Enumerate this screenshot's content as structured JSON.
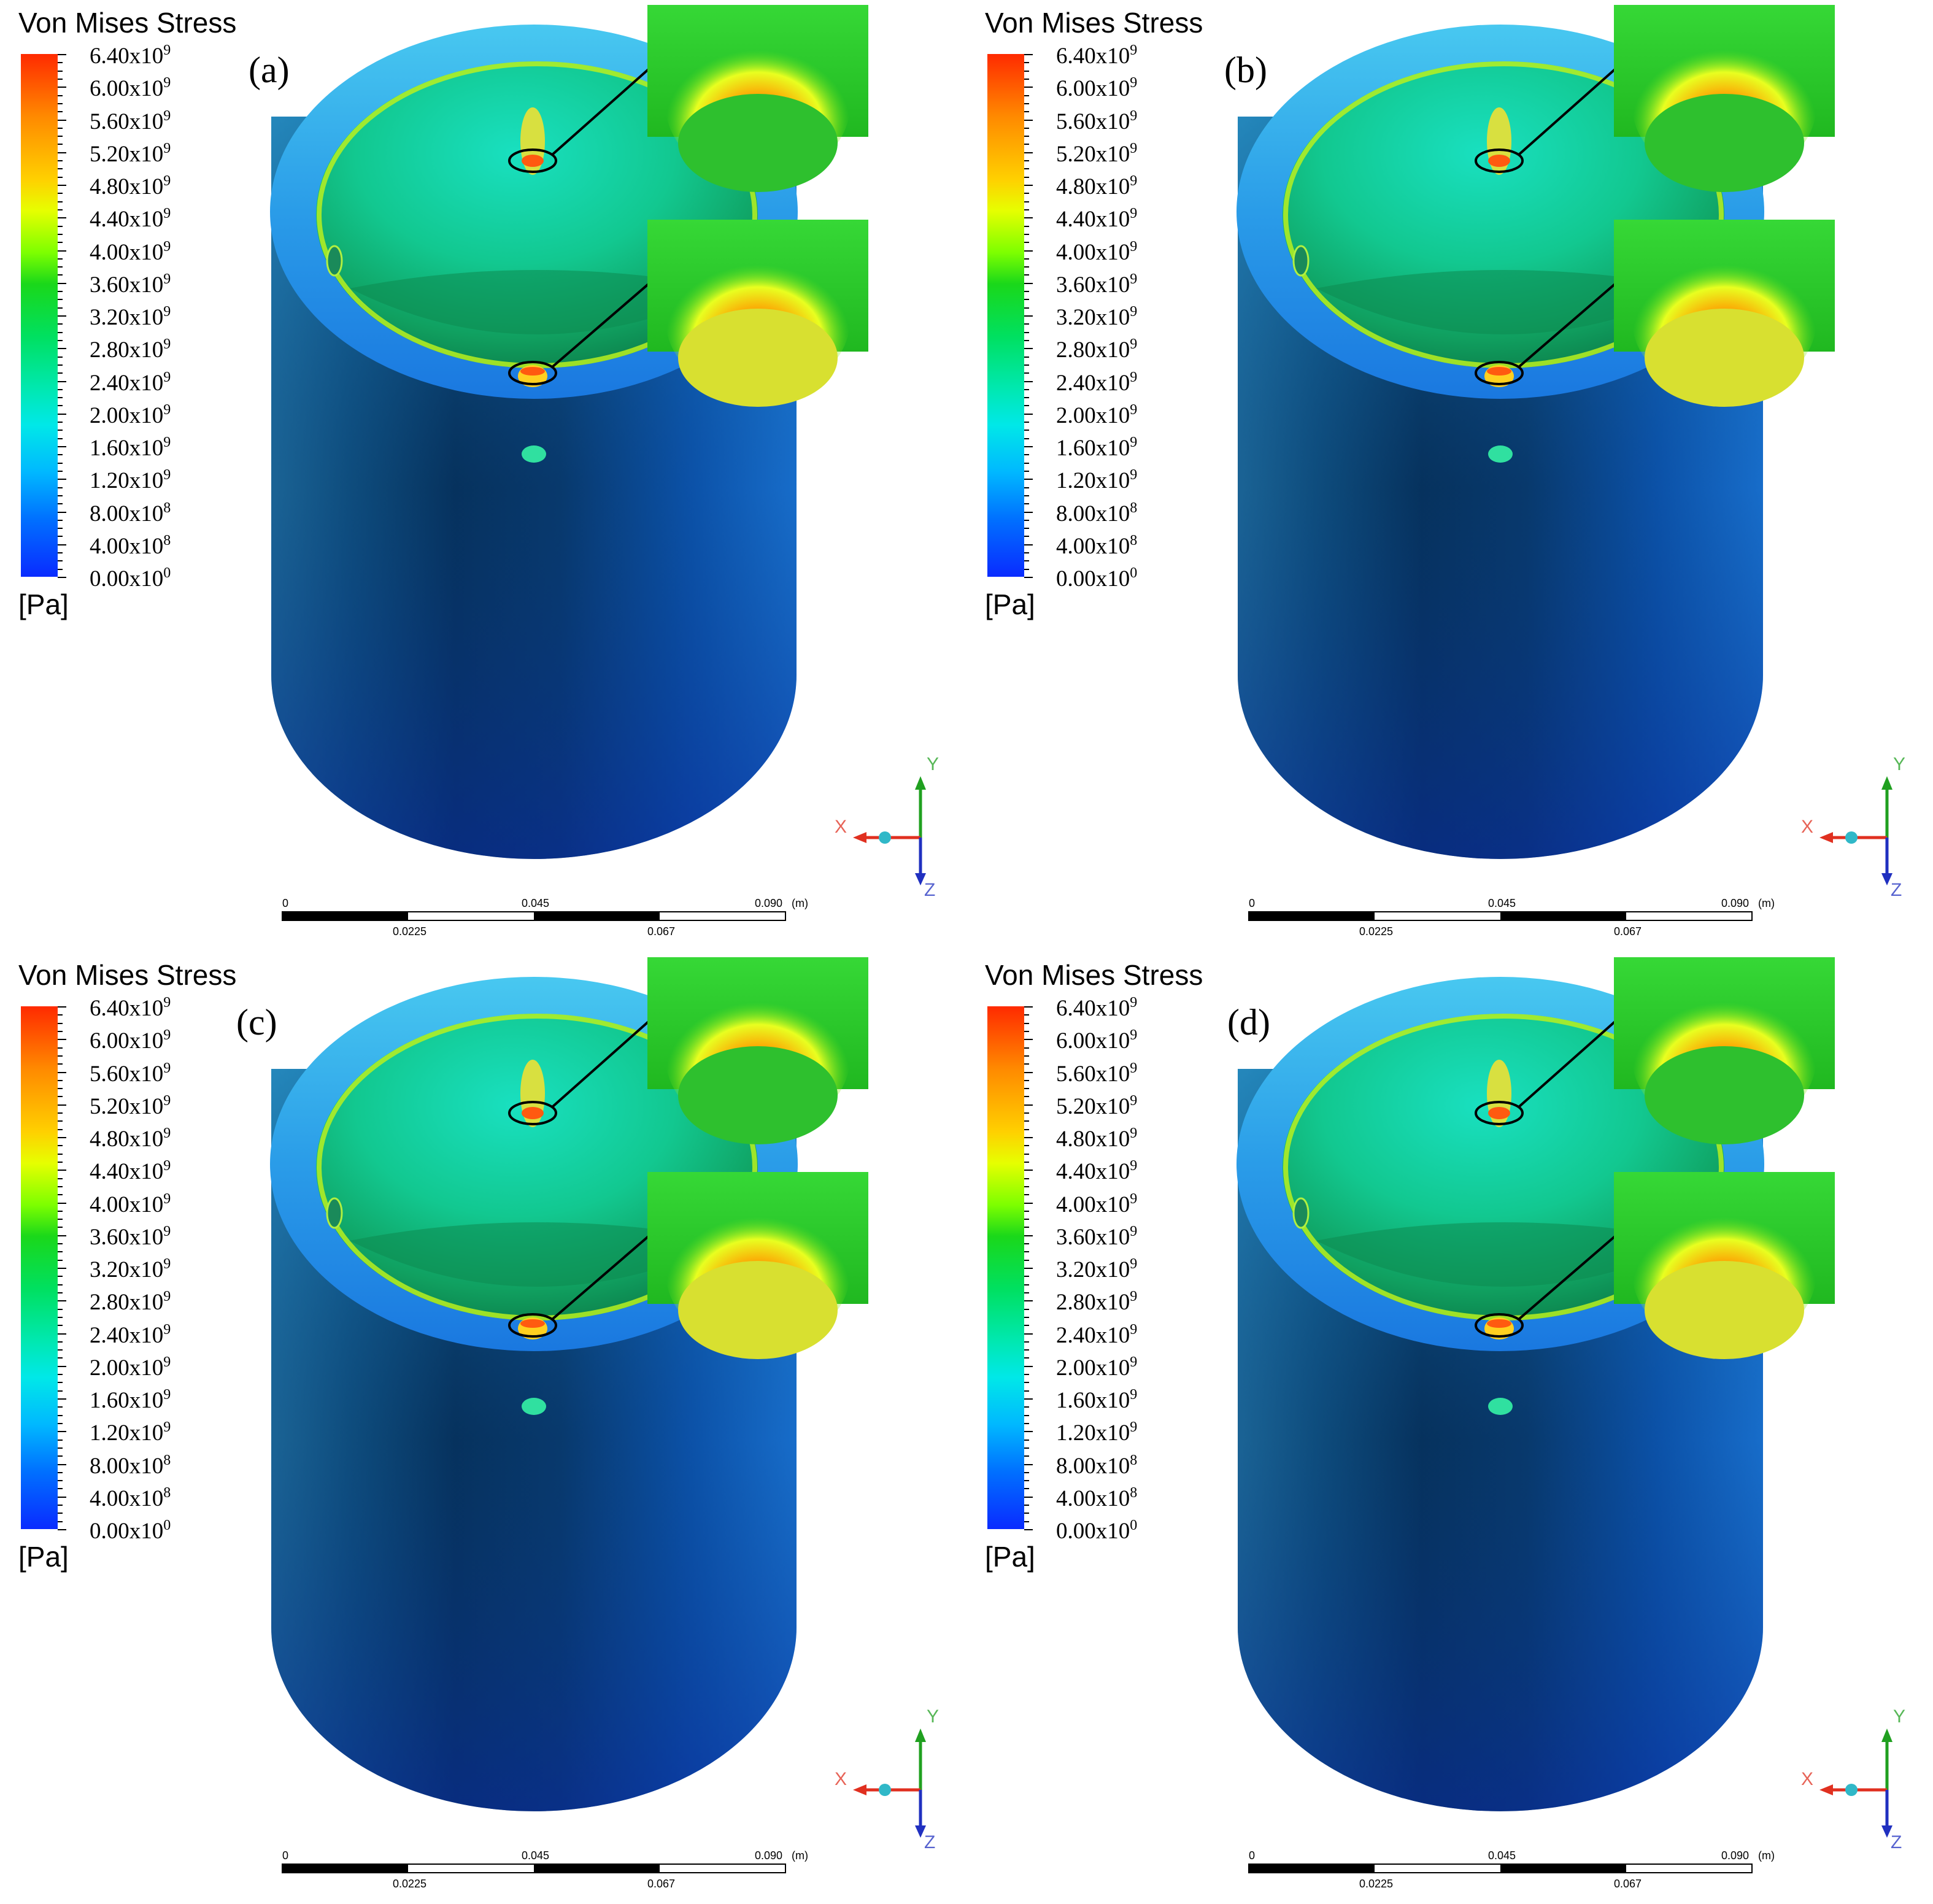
{
  "legend": {
    "title": "Von Mises Stress",
    "unit": "[Pa]",
    "ticks": [
      {
        "mantissa": "6.40x10",
        "exp": "9"
      },
      {
        "mantissa": "6.00x10",
        "exp": "9"
      },
      {
        "mantissa": "5.60x10",
        "exp": "9"
      },
      {
        "mantissa": "5.20x10",
        "exp": "9"
      },
      {
        "mantissa": "4.80x10",
        "exp": "9"
      },
      {
        "mantissa": "4.40x10",
        "exp": "9"
      },
      {
        "mantissa": "4.00x10",
        "exp": "9"
      },
      {
        "mantissa": "3.60x10",
        "exp": "9"
      },
      {
        "mantissa": "3.20x10",
        "exp": "9"
      },
      {
        "mantissa": "2.80x10",
        "exp": "9"
      },
      {
        "mantissa": "2.40x10",
        "exp": "9"
      },
      {
        "mantissa": "2.00x10",
        "exp": "9"
      },
      {
        "mantissa": "1.60x10",
        "exp": "9"
      },
      {
        "mantissa": "1.20x10",
        "exp": "9"
      },
      {
        "mantissa": "8.00x10",
        "exp": "8"
      },
      {
        "mantissa": "4.00x10",
        "exp": "8"
      },
      {
        "mantissa": "0.00x10",
        "exp": "0"
      }
    ],
    "colors": {
      "max": "#ff2a00",
      "high": "#ffd000",
      "mid": "#1ad81a",
      "low_mid": "#00e8e8",
      "min": "#0a2bff"
    }
  },
  "panels": [
    {
      "id": "a",
      "label": "(a)"
    },
    {
      "id": "b",
      "label": "(b)"
    },
    {
      "id": "c",
      "label": "(c)"
    },
    {
      "id": "d",
      "label": "(d)"
    }
  ],
  "triad": {
    "x": "X",
    "y": "Y",
    "z": "Z",
    "x_color": "#e03020",
    "y_color": "#20a020",
    "z_color": "#2030c0"
  },
  "scale_bar": {
    "top_labels": [
      "0",
      "0.045",
      "0.090",
      "(m)"
    ],
    "bottom_labels": [
      "0.0225",
      "0.067"
    ]
  }
}
